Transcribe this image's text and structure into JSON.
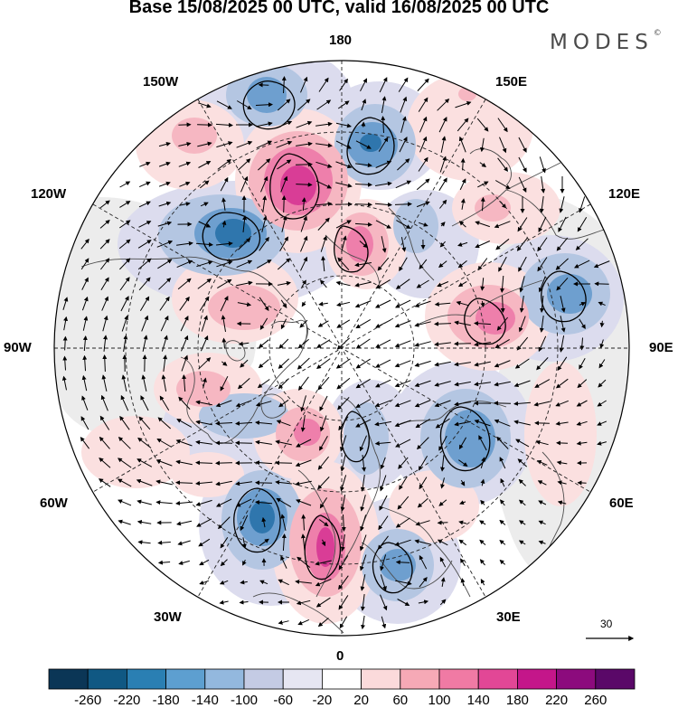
{
  "title": "Base 15/08/2025 00 UTC, valid 16/08/2025 00 UTC",
  "brand": {
    "name": "MODES",
    "mark": "©"
  },
  "longitude_labels": {
    "top": "180",
    "bottom": "0",
    "left": "90W",
    "right": "90E",
    "upper_left": "150W",
    "upper_right": "150E",
    "mid_upper_left": "120W",
    "mid_upper_right": "120E",
    "lower_left": "60W",
    "lower_right": "60E",
    "bottom_left": "30W",
    "bottom_right": "30E"
  },
  "reference_vector": {
    "value": "30"
  },
  "colorbar": {
    "labels": [
      "-260",
      "-220",
      "-180",
      "-140",
      "-100",
      "-60",
      "-20",
      "20",
      "60",
      "100",
      "140",
      "180",
      "220",
      "260"
    ],
    "colors": [
      "#0b3656",
      "#105883",
      "#2a7fb3",
      "#5d9fd0",
      "#93b8de",
      "#c4cbe4",
      "#e6e6f2",
      "#ffffff",
      "#fbdadb",
      "#f6a9b6",
      "#f07aa4",
      "#e24796",
      "#c4168a",
      "#8c0b7d",
      "#5a0868"
    ]
  },
  "anomaly_colors": {
    "neg_strong": "#2f76ad",
    "neg_mid": "#6e9fcf",
    "neg_weak": "#b4c6e2",
    "neg_faint": "#dcdcee",
    "pos_faint": "#fbe0e0",
    "pos_weak": "#f6b7c2",
    "pos_mid": "#ee7fab",
    "pos_strong": "#d93d96",
    "land_mask": "#ececec"
  }
}
